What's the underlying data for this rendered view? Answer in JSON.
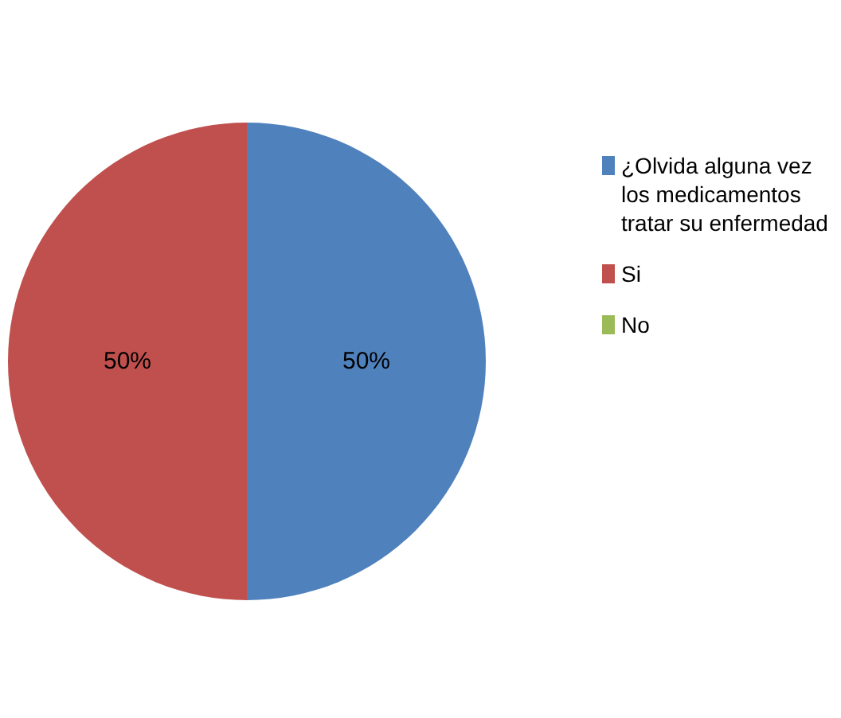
{
  "chart_data": {
    "type": "pie",
    "categories": [
      "¿Olvida alguna vez los medicamentos tratar su enfermedad",
      "Si",
      "No"
    ],
    "values": [
      50,
      50,
      0
    ],
    "colors": [
      "#4f81bd",
      "#c0504d",
      "#9bbb59"
    ],
    "value_labels": [
      "50%",
      "50%",
      null
    ],
    "legend": "right"
  }
}
